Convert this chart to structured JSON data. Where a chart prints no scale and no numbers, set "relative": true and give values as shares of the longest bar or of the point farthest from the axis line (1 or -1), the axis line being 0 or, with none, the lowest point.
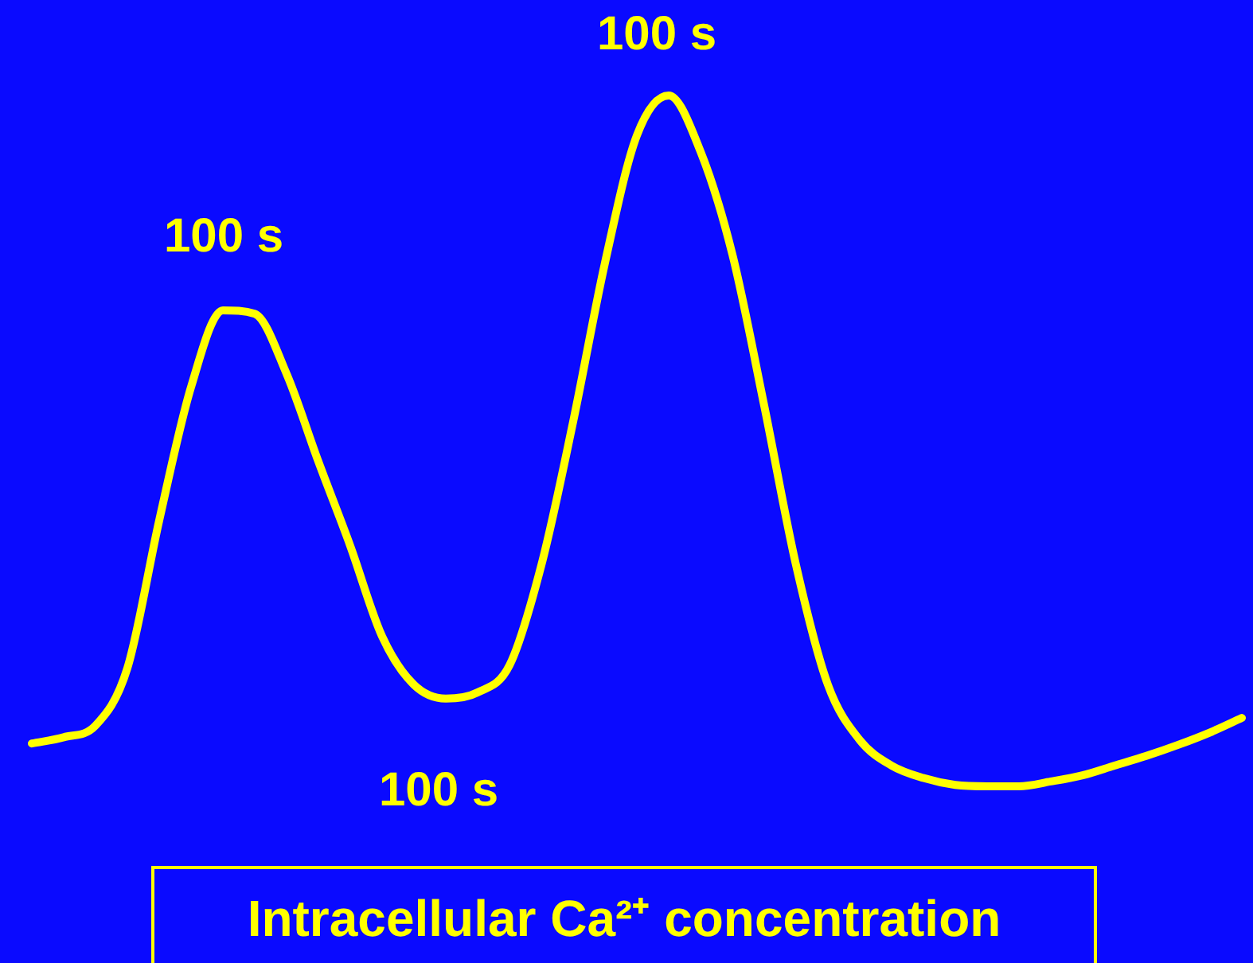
{
  "chart_data": {
    "type": "line",
    "title": "Intracellular Ca²⁺ concentration",
    "relative": true,
    "legend": false,
    "marker": "none",
    "categories": [
      null,
      null,
      null,
      null,
      null,
      null,
      null,
      null,
      null,
      null,
      null,
      null,
      null,
      null,
      null,
      null,
      null,
      null,
      null,
      null,
      null,
      null,
      null,
      null,
      null,
      null,
      null,
      null,
      null,
      null,
      null,
      null,
      null,
      null,
      null,
      null,
      null,
      null,
      null
    ],
    "series": [
      {
        "color": "#ffff00",
        "values": [
          0.062,
          0.071,
          0.088,
          0.171,
          0.385,
          0.578,
          0.689,
          0.684,
          0.597,
          0.47,
          0.348,
          0.217,
          0.147,
          0.127,
          0.136,
          0.175,
          0.32,
          0.528,
          0.758,
          0.942,
          1,
          0.919,
          0.77,
          0.551,
          0.32,
          0.147,
          0.067,
          0.03,
          0.012,
          0.002,
          0,
          0,
          0.007,
          0.016,
          0.03,
          0.044,
          0.06,
          0.078,
          0.099
        ]
      }
    ],
    "annotations": [
      "100 s",
      "100 s",
      "100 s"
    ]
  }
}
